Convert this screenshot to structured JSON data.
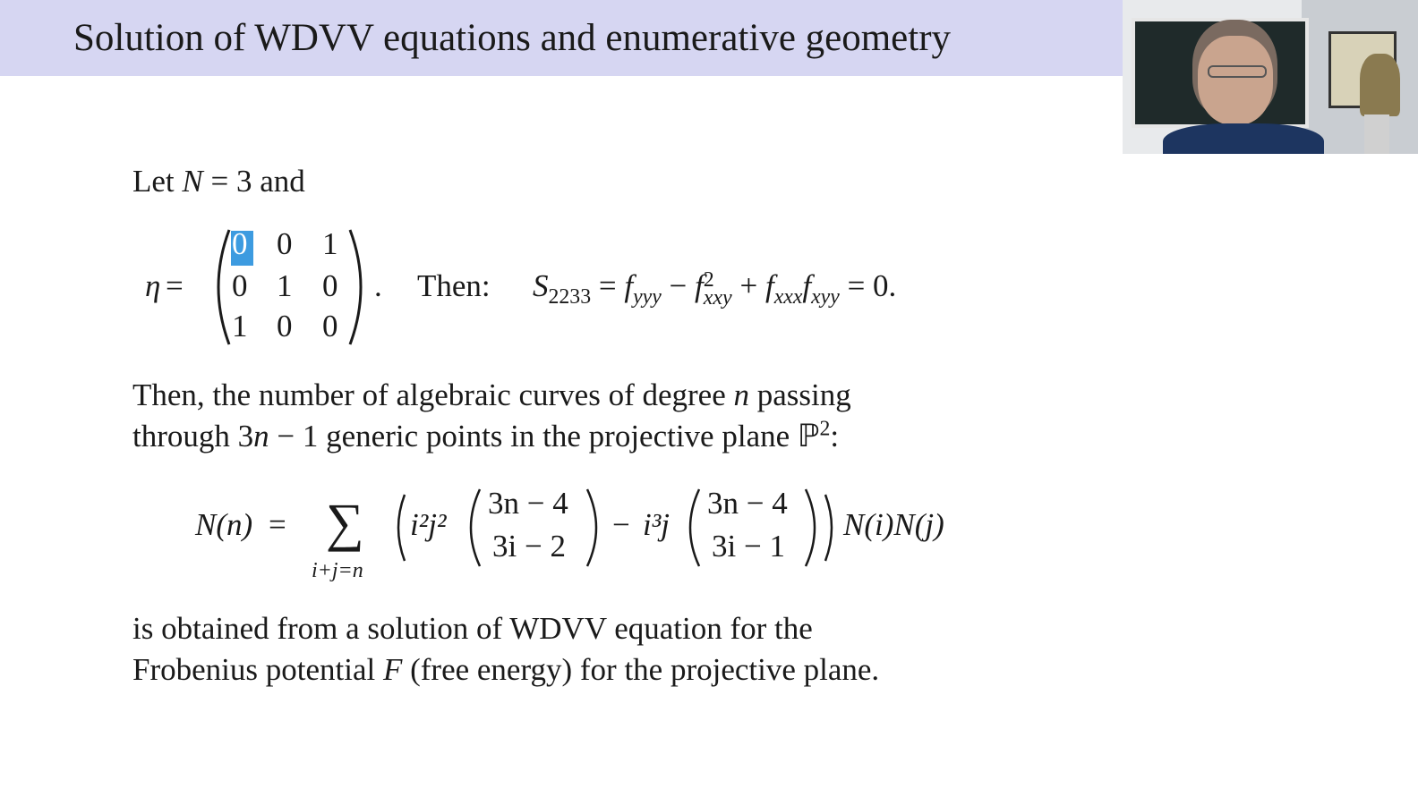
{
  "slide": {
    "title": "Solution of WDVV equations and enumerative geometry",
    "intro": {
      "let": "Let",
      "N": "N",
      "eq": " = 3 and"
    },
    "eta": {
      "symbol": "η",
      "eq": " =",
      "matrix": [
        [
          "0",
          "0",
          "1"
        ],
        [
          "0",
          "1",
          "0"
        ],
        [
          "1",
          "0",
          "0"
        ]
      ],
      "period": ".",
      "highlighted_entry": "0"
    },
    "then_label": "Then:",
    "equation": {
      "S": "S",
      "S_sub": "2233",
      "rhs1": " = ",
      "f1": "f",
      "f1_sub": "yyy",
      "minus": " − ",
      "f2": "f",
      "f2_sup": "2",
      "f2_sub": "xxy",
      "plus": " + ",
      "f3": "f",
      "f3_sub": "xxx",
      "f4": "f",
      "f4_sub": "xyy",
      "end": " = 0."
    },
    "paragraph1": {
      "line1a": "Then, the number of algebraic curves of degree ",
      "n": "n",
      "line1b": " passing",
      "line2a": "through 3",
      "line2n": "n",
      "line2b": " − 1 generic points in the projective plane ℙ",
      "line2sup": "2",
      "line2c": ":"
    },
    "formula": {
      "lhs": "N(n)",
      "eq": " =",
      "sum": "∑",
      "sum_sub": "i+j=n",
      "term1": "i²j²",
      "binom1_top": "3n − 4",
      "binom1_bot": "3i − 2",
      "minus": "−",
      "term2": "i³j",
      "binom2_top": "3n − 4",
      "binom2_bot": "3i − 1",
      "tail": "N(i)N(j)"
    },
    "paragraph2": {
      "line1": "is obtained from a solution of WDVV equation for the",
      "line2a": "Frobenius potential ",
      "F": "F",
      "line2b": " (free energy) for the projective plane."
    }
  },
  "colors": {
    "title_bar": "#d6d6f2",
    "selection": "#3d9be0"
  },
  "webcam": {
    "icon": "presenter-video"
  }
}
